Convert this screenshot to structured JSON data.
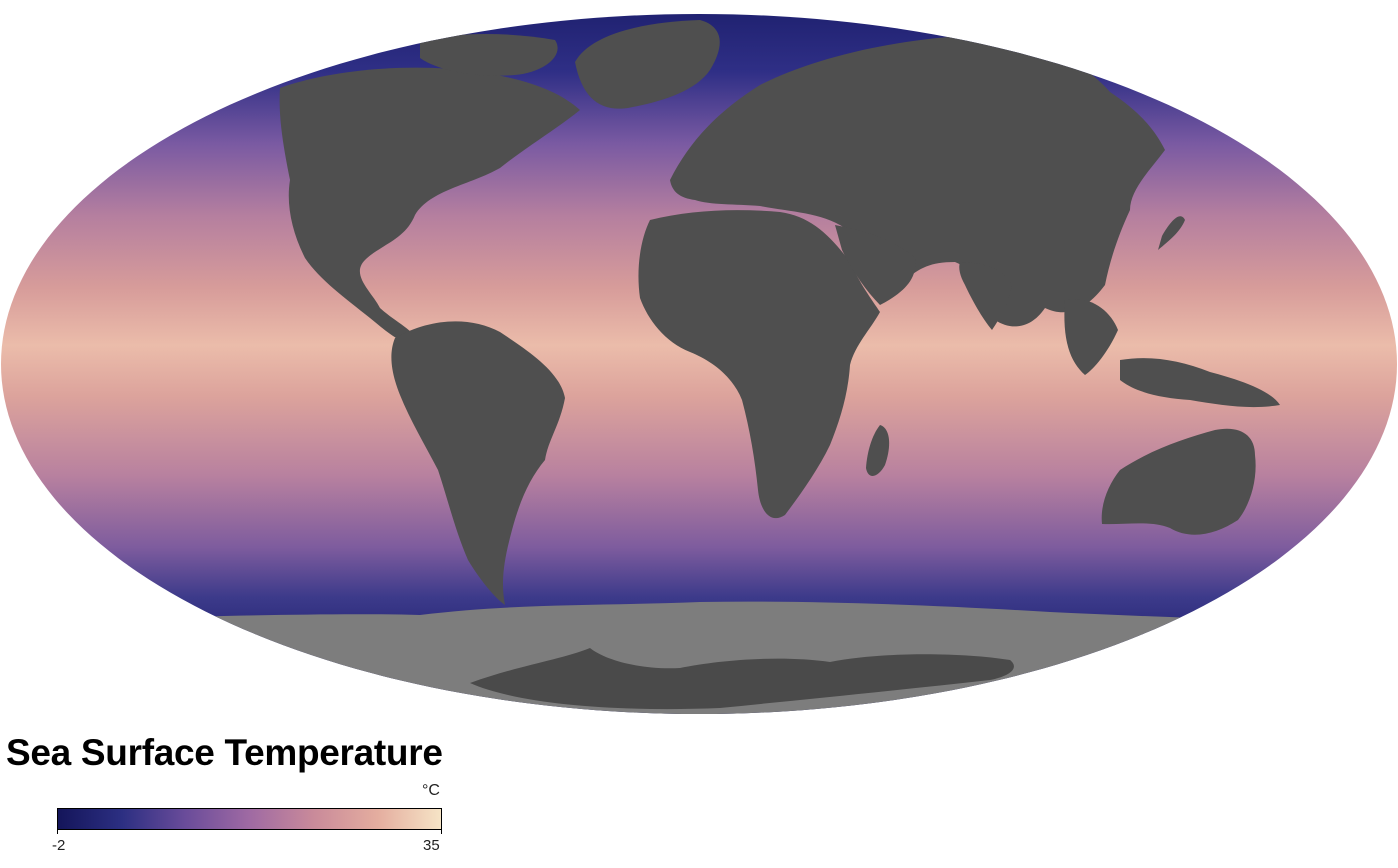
{
  "title": "Sea Surface Temperature",
  "legend": {
    "unit": "°C",
    "min_label": "-2",
    "max_label": "35",
    "min_value": -2,
    "max_value": 35,
    "colors": [
      "#14155a",
      "#2c2f82",
      "#6a4c9a",
      "#9f6aa3",
      "#c98a9a",
      "#e4ad9f",
      "#f6e4c6"
    ]
  },
  "map": {
    "projection": "Mollweide",
    "land_color": "#4f4f4f",
    "ice_color": "#7d7d7d",
    "cold_color": "#1e2170",
    "warm_color": "#f3d5b8"
  }
}
